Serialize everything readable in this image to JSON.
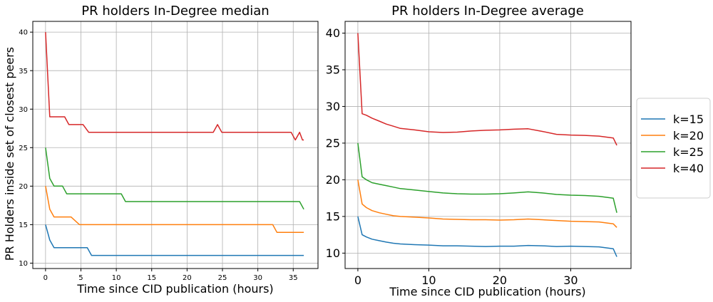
{
  "figure": {
    "shared_ylabel": "PR Holders inside set of closest peers"
  },
  "colors": {
    "k15": "#1f77b4",
    "k20": "#ff7f0e",
    "k25": "#2ca02c",
    "k40": "#d62728",
    "grid": "#b0b0b0"
  },
  "legend": {
    "placement": "right-outside",
    "entries": [
      "k=15",
      "k=20",
      "k=25",
      "k=40"
    ]
  },
  "chart_data": [
    {
      "type": "line",
      "title": "PR holders In-Degree median",
      "xlabel": "Time since CID publication (hours)",
      "ylabel": "PR Holders inside set of closest peers",
      "xlim": [
        -1.8,
        38.5
      ],
      "ylim": [
        9.3,
        41.4
      ],
      "xticks": [
        0,
        5,
        10,
        15,
        20,
        25,
        30,
        35
      ],
      "yticks": [
        10,
        15,
        20,
        25,
        30,
        35,
        40
      ],
      "grid": true,
      "series": [
        {
          "name": "k=15",
          "x": [
            0,
            0.6,
            1.2,
            5.9,
            6.5,
            36.5
          ],
          "y": [
            15,
            13,
            12,
            12,
            11,
            11
          ]
        },
        {
          "name": "k=20",
          "x": [
            0,
            0.6,
            1.2,
            3.6,
            4.8,
            32.1,
            32.7,
            36.5
          ],
          "y": [
            20,
            17,
            16,
            16,
            15,
            15,
            14,
            14
          ]
        },
        {
          "name": "k=25",
          "x": [
            0,
            0.6,
            1.2,
            2.4,
            3.0,
            10.7,
            11.3,
            35.9,
            36.5
          ],
          "y": [
            25,
            21,
            20,
            20,
            19,
            19,
            18,
            18,
            17
          ]
        },
        {
          "name": "k=40",
          "x": [
            0,
            0.6,
            2.7,
            3.3,
            5.3,
            6.1,
            23.7,
            24.3,
            24.9,
            34.7,
            35.3,
            35.9,
            36.3,
            36.5
          ],
          "y": [
            40,
            29,
            29,
            28,
            28,
            27,
            27,
            28,
            27,
            27,
            26,
            27,
            26,
            26
          ]
        }
      ]
    },
    {
      "type": "line",
      "title": "PR holders In-Degree average",
      "xlabel": "Time since CID publication (hours)",
      "ylabel": "",
      "xlim": [
        -1.8,
        38.5
      ],
      "ylim": [
        7.9,
        41.6
      ],
      "xticks": [
        0,
        10,
        20,
        30
      ],
      "yticks": [
        10,
        15,
        20,
        25,
        30,
        35,
        40
      ],
      "grid": true,
      "series": [
        {
          "name": "k=15",
          "x": [
            0,
            0.6,
            1.2,
            2,
            3,
            4,
            5,
            6,
            8,
            10,
            12,
            14,
            16,
            18,
            20,
            22,
            24,
            26,
            28,
            30,
            32,
            34,
            36,
            36.5
          ],
          "y": [
            15,
            12.5,
            12.2,
            11.9,
            11.7,
            11.5,
            11.35,
            11.25,
            11.15,
            11.1,
            11.0,
            11.0,
            10.95,
            10.9,
            10.95,
            10.95,
            11.05,
            11.0,
            10.9,
            10.95,
            10.9,
            10.85,
            10.6,
            9.5
          ]
        },
        {
          "name": "k=20",
          "x": [
            0,
            0.6,
            1.2,
            2,
            3,
            4,
            5,
            6,
            8,
            10,
            12,
            14,
            16,
            18,
            20,
            22,
            24,
            26,
            28,
            30,
            32,
            34,
            36,
            36.5
          ],
          "y": [
            20,
            16.7,
            16.2,
            15.8,
            15.5,
            15.3,
            15.1,
            15.0,
            14.9,
            14.8,
            14.65,
            14.6,
            14.55,
            14.55,
            14.5,
            14.55,
            14.65,
            14.55,
            14.45,
            14.35,
            14.3,
            14.25,
            14.0,
            13.5
          ]
        },
        {
          "name": "k=25",
          "x": [
            0,
            0.6,
            1.2,
            2,
            3,
            4,
            5,
            6,
            8,
            10,
            12,
            14,
            16,
            18,
            20,
            22,
            24,
            26,
            28,
            30,
            32,
            34,
            36,
            36.5
          ],
          "y": [
            25,
            20.4,
            20.0,
            19.6,
            19.4,
            19.2,
            19.0,
            18.8,
            18.6,
            18.4,
            18.2,
            18.1,
            18.05,
            18.05,
            18.1,
            18.2,
            18.35,
            18.2,
            18.0,
            17.9,
            17.85,
            17.75,
            17.5,
            15.5
          ]
        },
        {
          "name": "k=40",
          "x": [
            0,
            0.6,
            1.2,
            2,
            3,
            4,
            5,
            6,
            8,
            10,
            12,
            14,
            16,
            18,
            20,
            22,
            24,
            26,
            28,
            30,
            32,
            34,
            36,
            36.5
          ],
          "y": [
            40,
            29.0,
            28.8,
            28.4,
            28.0,
            27.6,
            27.3,
            27.0,
            26.8,
            26.55,
            26.45,
            26.5,
            26.65,
            26.75,
            26.8,
            26.9,
            26.95,
            26.6,
            26.2,
            26.1,
            26.05,
            25.95,
            25.7,
            24.7
          ]
        }
      ]
    }
  ]
}
